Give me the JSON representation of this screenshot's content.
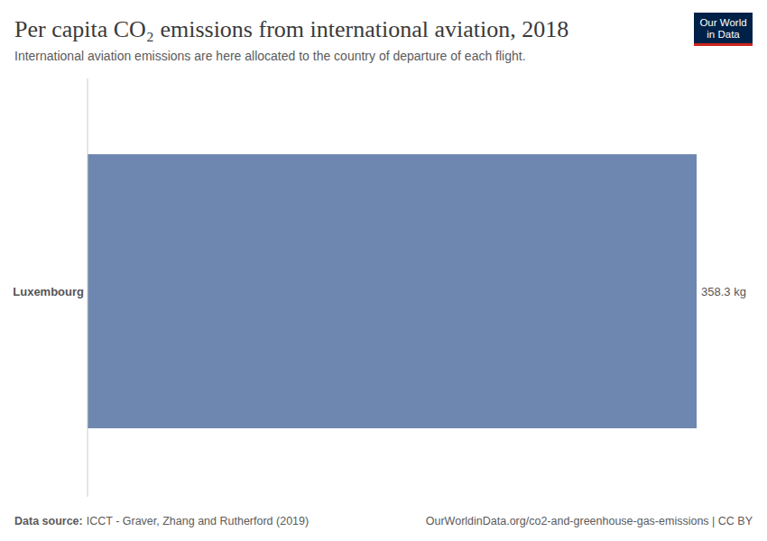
{
  "chart_data": {
    "type": "bar",
    "orientation": "horizontal",
    "title": "Per capita CO₂ emissions from international aviation, 2018",
    "subtitle": "International aviation emissions are here allocated to the country of departure of each flight.",
    "categories": [
      "Luxembourg"
    ],
    "values": [
      358.3
    ],
    "value_labels": [
      "358.3 kg"
    ],
    "color": "#6e87b0",
    "xlim": [
      0,
      358.3
    ],
    "data_labels": true,
    "tick_labels": "y",
    "grid": false,
    "source_label": "Data source:",
    "source": "ICCT - Graver, Zhang and Rutherford (2019)",
    "url": "OurWorldinData.org/co2-and-greenhouse-gas-emissions | CC BY",
    "logo": [
      "Our World",
      "in Data"
    ]
  }
}
